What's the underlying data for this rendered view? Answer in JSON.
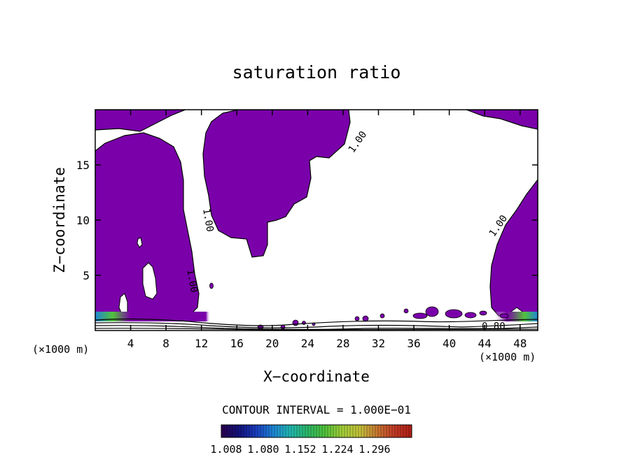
{
  "chart_data": {
    "type": "heatmap",
    "title": "saturation ratio",
    "xlabel": "X−coordinate",
    "ylabel": "Z−coordinate",
    "x_unit_left": "(×1000 m)",
    "x_unit_right": "(×1000 m)",
    "xlim": [
      0,
      50
    ],
    "ylim": [
      0,
      20
    ],
    "xticks": [
      4,
      8,
      12,
      16,
      20,
      24,
      28,
      32,
      36,
      40,
      44,
      48
    ],
    "yticks": [
      5,
      10,
      15
    ],
    "grid": false,
    "fill_threshold": 1.0,
    "fill_color": "#7a00aa",
    "contour_interval_label": "CONTOUR INTERVAL = 1.000E−01",
    "contour_labels": [
      {
        "text": "1.00",
        "x": 29.6,
        "z": 17.1,
        "angle": -55
      },
      {
        "text": "1.00",
        "x": 12.8,
        "z": 10.0,
        "angle": 80
      },
      {
        "text": "1.00",
        "x": 11.0,
        "z": 4.5,
        "angle": 80
      },
      {
        "text": "1.00",
        "x": 45.5,
        "z": 9.5,
        "angle": -55
      },
      {
        "text": "0.80",
        "x": 45.0,
        "z": 0.4,
        "angle": 0
      }
    ],
    "colorbar": {
      "ticks": [
        "1.008",
        "1.080",
        "1.152",
        "1.224",
        "1.296"
      ],
      "colors": [
        "#2a0050",
        "#12127a",
        "#1a3cbf",
        "#1e86d6",
        "#22b8b0",
        "#2cb868",
        "#52c23a",
        "#a4cf3a",
        "#c4c23a",
        "#c87832",
        "#c23a26",
        "#b01e14"
      ]
    }
  }
}
